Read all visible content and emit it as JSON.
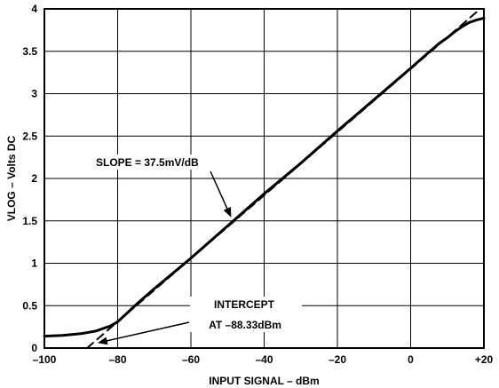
{
  "chart_data": {
    "type": "line",
    "title": "",
    "xlabel": "INPUT SIGNAL – dBm",
    "ylabel": "VLOG – Volts DC",
    "xlim": [
      -100,
      20
    ],
    "ylim": [
      0,
      4
    ],
    "x_ticks": [
      -100,
      -80,
      -60,
      -40,
      -20,
      0,
      20
    ],
    "x_tick_labels": [
      "–100",
      "–80",
      "–60",
      "–40",
      "–20",
      "0",
      "+20"
    ],
    "y_ticks": [
      0,
      0.5,
      1,
      1.5,
      2,
      2.5,
      3,
      3.5,
      4
    ],
    "y_tick_labels": [
      "0",
      "0.5",
      "1",
      "1.5",
      "2",
      "2.5",
      "3",
      "3.5",
      "4"
    ],
    "grid": true,
    "series": [
      {
        "style": "solid",
        "x": [
          -100,
          -95,
          -90,
          -86,
          -84,
          -82,
          -80,
          -78,
          -76,
          -74,
          -70,
          -60,
          -50,
          -40,
          -30,
          -20,
          -10,
          0,
          5,
          8,
          10,
          12,
          14,
          16,
          18,
          20
        ],
        "y": [
          0.14,
          0.15,
          0.17,
          0.2,
          0.23,
          0.26,
          0.31,
          0.39,
          0.47,
          0.55,
          0.7,
          1.06,
          1.44,
          1.82,
          2.18,
          2.56,
          2.93,
          3.3,
          3.49,
          3.6,
          3.66,
          3.73,
          3.79,
          3.84,
          3.87,
          3.89
        ]
      },
      {
        "style": "dashed",
        "x": [
          -88.33,
          19
        ],
        "y": [
          0,
          4.0
        ]
      }
    ],
    "annotations": [
      {
        "text": "SLOPE = 37.5mV/dB"
      },
      {
        "text_lines": [
          "INTERCEPT",
          "AT –88.33dBm"
        ]
      }
    ]
  }
}
